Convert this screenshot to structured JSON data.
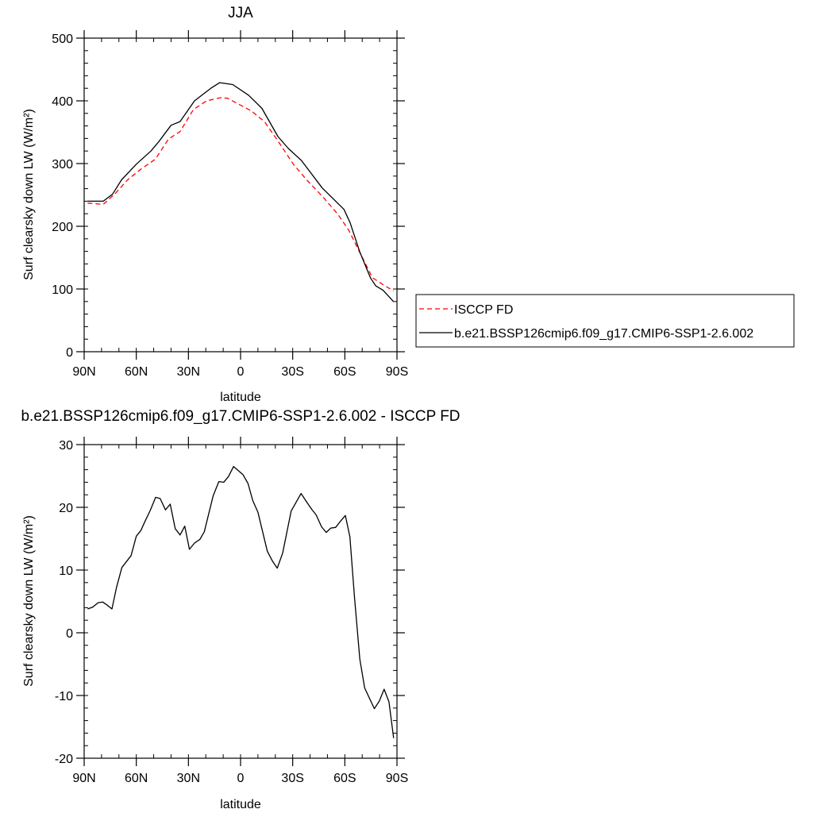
{
  "chart_data": [
    {
      "type": "line",
      "title": "JJA",
      "xlabel": "latitude",
      "ylabel": "Surf clearsky down LW (W/m²)",
      "xlim": [
        90,
        -90
      ],
      "ylim": [
        0,
        500
      ],
      "xticks": [
        90,
        60,
        30,
        0,
        -30,
        -60,
        -90
      ],
      "xtick_labels": [
        "90N",
        "60N",
        "30N",
        "0",
        "30S",
        "60S",
        "90S"
      ],
      "yticks": [
        0,
        100,
        200,
        300,
        400,
        500
      ],
      "ytick_labels": [
        "0",
        "100",
        "200",
        "300",
        "400",
        "500"
      ],
      "grid": false,
      "legend_placement": "right",
      "series": [
        {
          "name": "ISCCP FD",
          "color": "#ff0000",
          "dash": "dashed",
          "x": [
            88,
            79,
            72.5,
            65,
            57.4,
            49,
            41.5,
            34.8,
            27.2,
            19.6,
            11.3,
            7.5,
            -6.1,
            -13.7,
            -21.3,
            -30.4,
            -38,
            -47,
            -56,
            -62.2,
            -68.3,
            -75.9,
            -82,
            -88
          ],
          "y": [
            237,
            235,
            251,
            274,
            291,
            307,
            339,
            351,
            386,
            400,
            405,
            404,
            384,
            367,
            337,
            299,
            274,
            248,
            219,
            194,
            160,
            118,
            107,
            97
          ]
        },
        {
          "name": "b.e21.BSSP126cmip6.f09_g17.CMIP6-SSP1-2.6.002",
          "color": "#000000",
          "dash": "solid",
          "x": [
            88,
            79,
            73.7,
            68.5,
            60,
            51.6,
            47,
            40,
            34.8,
            26.5,
            16.6,
            12,
            4.5,
            -4.6,
            -12.3,
            -21.5,
            -27.5,
            -35,
            -47,
            -59.5,
            -63,
            -68.5,
            -74.7,
            -77.8,
            -82,
            -88
          ],
          "y": [
            240,
            240,
            251,
            274,
            299,
            320,
            335,
            361,
            367,
            400,
            421,
            429,
            426,
            409,
            388,
            343,
            324,
            305,
            261,
            227,
            206,
            160,
            118,
            105,
            98,
            80
          ]
        }
      ]
    },
    {
      "type": "line",
      "title": "b.e21.BSSP126cmip6.f09_g17.CMIP6-SSP1-2.6.002 - ISCCP FD",
      "xlabel": "latitude",
      "ylabel": "Surf clearsky down LW (W/m²)",
      "xlim": [
        90,
        -90
      ],
      "ylim": [
        -20,
        30
      ],
      "xticks": [
        90,
        60,
        30,
        0,
        -30,
        -60,
        -90
      ],
      "xtick_labels": [
        "90N",
        "60N",
        "30N",
        "0",
        "30S",
        "60S",
        "90S"
      ],
      "yticks": [
        -20,
        -10,
        0,
        10,
        20,
        30
      ],
      "ytick_labels": [
        "-20",
        "-10",
        "0",
        "10",
        "20",
        "30"
      ],
      "grid": false,
      "series": [
        {
          "color": "#000000",
          "dash": "solid",
          "x": [
            88,
            85,
            82,
            79.3,
            76.7,
            74,
            71.4,
            68.3,
            63,
            60,
            57.4,
            54.6,
            52,
            48.9,
            46.3,
            43.2,
            40.5,
            37.6,
            34.8,
            32.1,
            29.4,
            26.5,
            23.4,
            20.9,
            15.8,
            12.5,
            9.7,
            7,
            4,
            -1.4,
            -4.3,
            -7,
            -10,
            -15.4,
            -18.4,
            -21.1,
            -24.2,
            -29.1,
            -34.8,
            -37.9,
            -40.9,
            -43.5,
            -46.6,
            -49.3,
            -51.9,
            -54.7,
            -57.5,
            -60.3,
            -62.9,
            -65.6,
            -68.6,
            -71.4,
            -77,
            -79.8,
            -82.6,
            -85.4,
            -88.1
          ],
          "y": [
            3.8,
            4.1,
            4.8,
            4.9,
            4.4,
            3.8,
            7.2,
            10.4,
            12.3,
            15.4,
            16.3,
            18,
            19.5,
            21.6,
            21.4,
            19.6,
            20.5,
            16.6,
            15.6,
            17,
            13.3,
            14.3,
            14.9,
            16.1,
            21.8,
            24.1,
            24,
            24.9,
            26.5,
            25.2,
            23.8,
            21.1,
            19.2,
            13,
            11.4,
            10.3,
            12.7,
            19.4,
            22.2,
            20.9,
            19.7,
            18.8,
            16.9,
            16,
            16.7,
            16.8,
            17.8,
            18.7,
            15.3,
            5.5,
            -4.2,
            -8.8,
            -12.1,
            -10.9,
            -9,
            -11,
            -16.8
          ]
        }
      ]
    }
  ]
}
